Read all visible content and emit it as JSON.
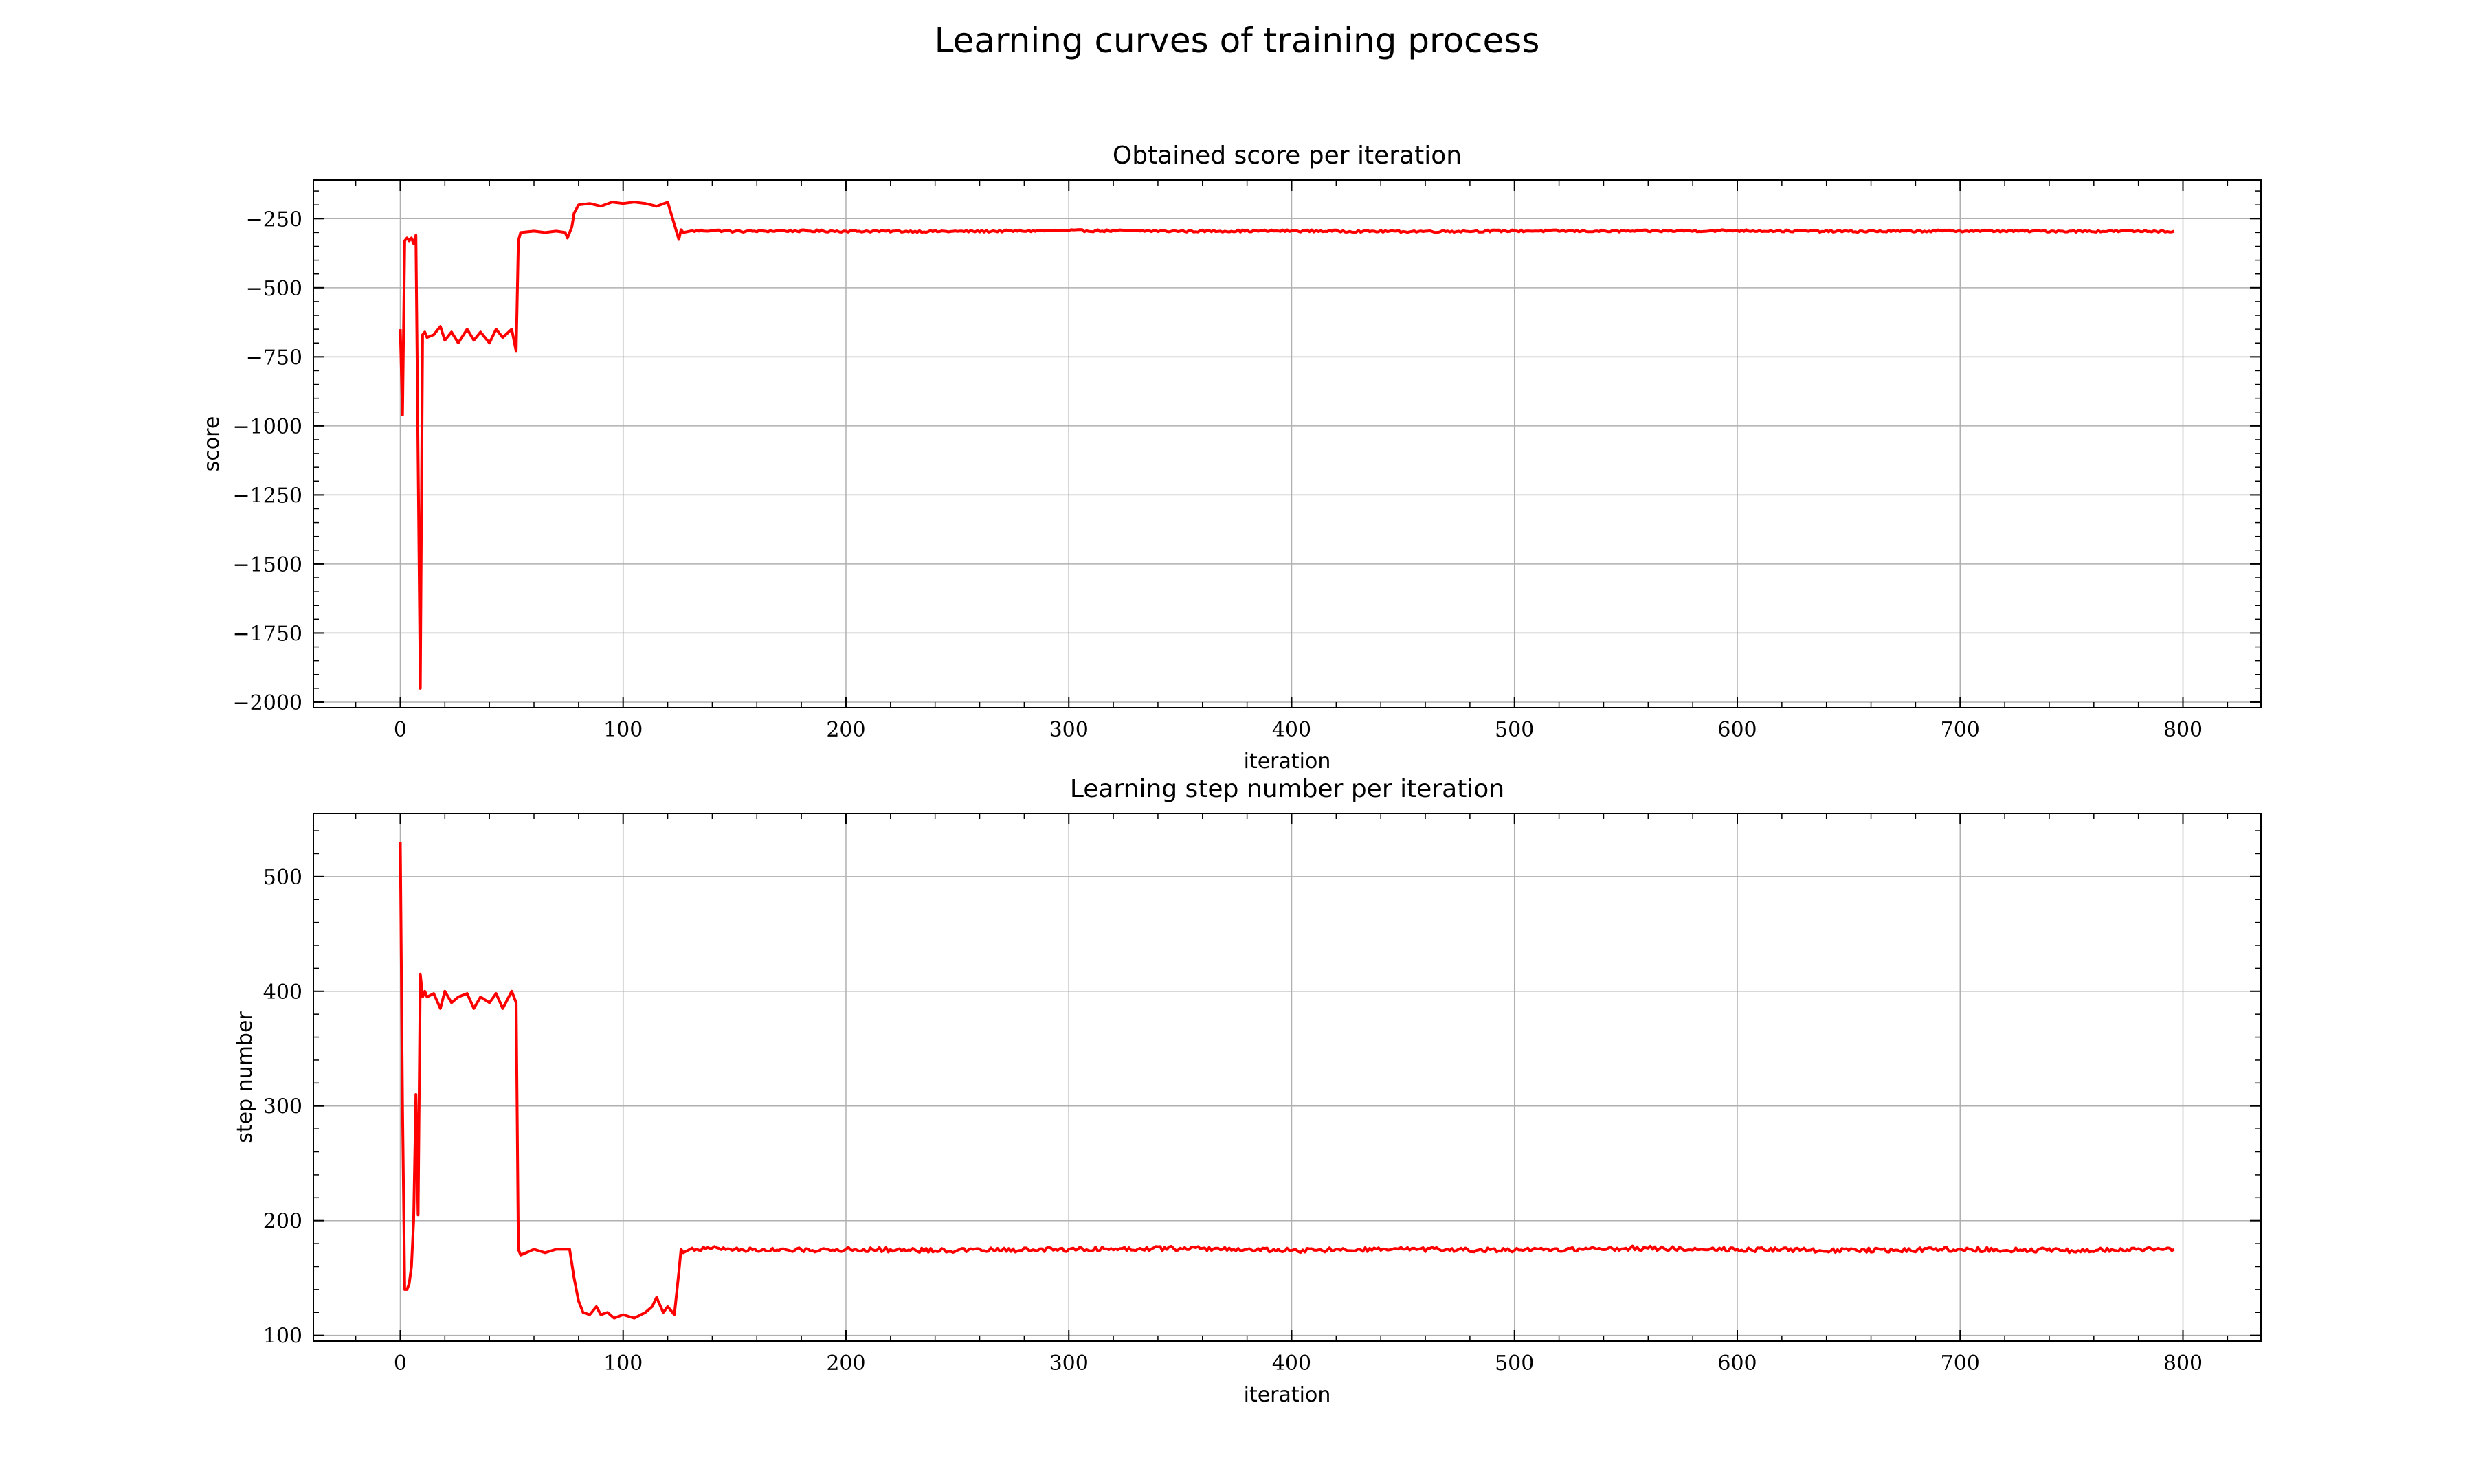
{
  "figure": {
    "title": "Learning curves of training process"
  },
  "colors": {
    "line": "#ff0000",
    "grid": "#b0b0b0",
    "axes": "#000000"
  },
  "chart_data": [
    {
      "type": "line",
      "title": "Obtained score per iteration",
      "xlabel": "iteration",
      "ylabel": "score",
      "xlim": [
        -39,
        835
      ],
      "ylim": [
        -2020,
        -110
      ],
      "xticks": [
        0,
        100,
        200,
        300,
        400,
        500,
        600,
        700,
        800
      ],
      "xtick_labels": [
        "0",
        "100",
        "200",
        "300",
        "400",
        "500",
        "600",
        "700",
        "800"
      ],
      "yticks": [
        -250,
        -500,
        -750,
        -1000,
        -1250,
        -1500,
        -1750,
        -2000
      ],
      "ytick_labels": [
        "−250",
        "−500",
        "−750",
        "−1000",
        "−1250",
        "−1500",
        "−1750",
        "−2000"
      ],
      "grid": true,
      "series": [
        {
          "x": [
            0,
            1,
            2,
            3,
            4,
            5,
            6,
            7,
            8,
            9,
            10,
            11,
            12,
            15,
            18,
            20,
            23,
            26,
            30,
            33,
            36,
            40,
            43,
            46,
            50,
            52,
            53,
            54,
            60,
            65,
            70,
            74,
            75,
            77,
            78,
            80,
            85,
            90,
            95,
            100,
            105,
            110,
            115,
            120,
            125,
            126,
            127,
            130,
            140,
            150,
            170,
            200,
            250,
            300,
            350,
            400,
            450,
            500,
            550,
            600,
            650,
            700,
            750,
            796
          ],
          "y": [
            -650,
            -960,
            -330,
            -320,
            -330,
            -320,
            -340,
            -310,
            -1120,
            -1950,
            -670,
            -660,
            -680,
            -670,
            -640,
            -690,
            -660,
            -700,
            -650,
            -690,
            -660,
            -700,
            -650,
            -680,
            -650,
            -730,
            -330,
            -300,
            -295,
            -300,
            -295,
            -300,
            -320,
            -280,
            -230,
            -200,
            -195,
            -205,
            -190,
            -195,
            -190,
            -195,
            -205,
            -190,
            -325,
            -290,
            -300,
            -295,
            -292,
            -296,
            -294,
            -295,
            -296,
            -293,
            -295,
            -294,
            -296,
            -294,
            -295,
            -293,
            -296,
            -294,
            -295,
            -295
          ],
          "noise_amplitude": 4,
          "noise_start": 130
        }
      ]
    },
    {
      "type": "line",
      "title": "Learning step number per iteration",
      "xlabel": "iteration",
      "ylabel": "step number",
      "xlim": [
        -39,
        835
      ],
      "ylim": [
        95,
        555
      ],
      "xticks": [
        0,
        100,
        200,
        300,
        400,
        500,
        600,
        700,
        800
      ],
      "xtick_labels": [
        "0",
        "100",
        "200",
        "300",
        "400",
        "500",
        "600",
        "700",
        "800"
      ],
      "yticks": [
        100,
        200,
        300,
        400,
        500
      ],
      "ytick_labels": [
        "100",
        "200",
        "300",
        "400",
        "500"
      ],
      "grid": true,
      "series": [
        {
          "x": [
            0,
            1,
            2,
            3,
            4,
            5,
            6,
            7,
            8,
            9,
            10,
            11,
            12,
            15,
            18,
            20,
            23,
            26,
            30,
            33,
            36,
            40,
            43,
            46,
            50,
            52,
            53,
            54,
            60,
            65,
            70,
            76,
            78,
            80,
            82,
            85,
            88,
            90,
            93,
            96,
            100,
            105,
            110,
            113,
            115,
            118,
            120,
            123,
            125,
            126,
            127,
            130,
            140,
            150,
            170,
            200,
            250,
            300,
            350,
            400,
            450,
            500,
            550,
            600,
            650,
            700,
            750,
            796
          ],
          "y": [
            530,
            300,
            140,
            140,
            145,
            160,
            200,
            310,
            205,
            415,
            395,
            400,
            395,
            398,
            385,
            400,
            390,
            395,
            398,
            385,
            395,
            390,
            398,
            385,
            400,
            390,
            175,
            170,
            175,
            172,
            175,
            175,
            150,
            130,
            120,
            118,
            125,
            118,
            120,
            115,
            118,
            115,
            120,
            125,
            133,
            120,
            125,
            118,
            155,
            175,
            172,
            175,
            176,
            175,
            174,
            175,
            174,
            175,
            176,
            174,
            175,
            174,
            176,
            175,
            174,
            175,
            174,
            175
          ],
          "noise_amplitude": 2,
          "noise_start": 130
        }
      ]
    }
  ]
}
